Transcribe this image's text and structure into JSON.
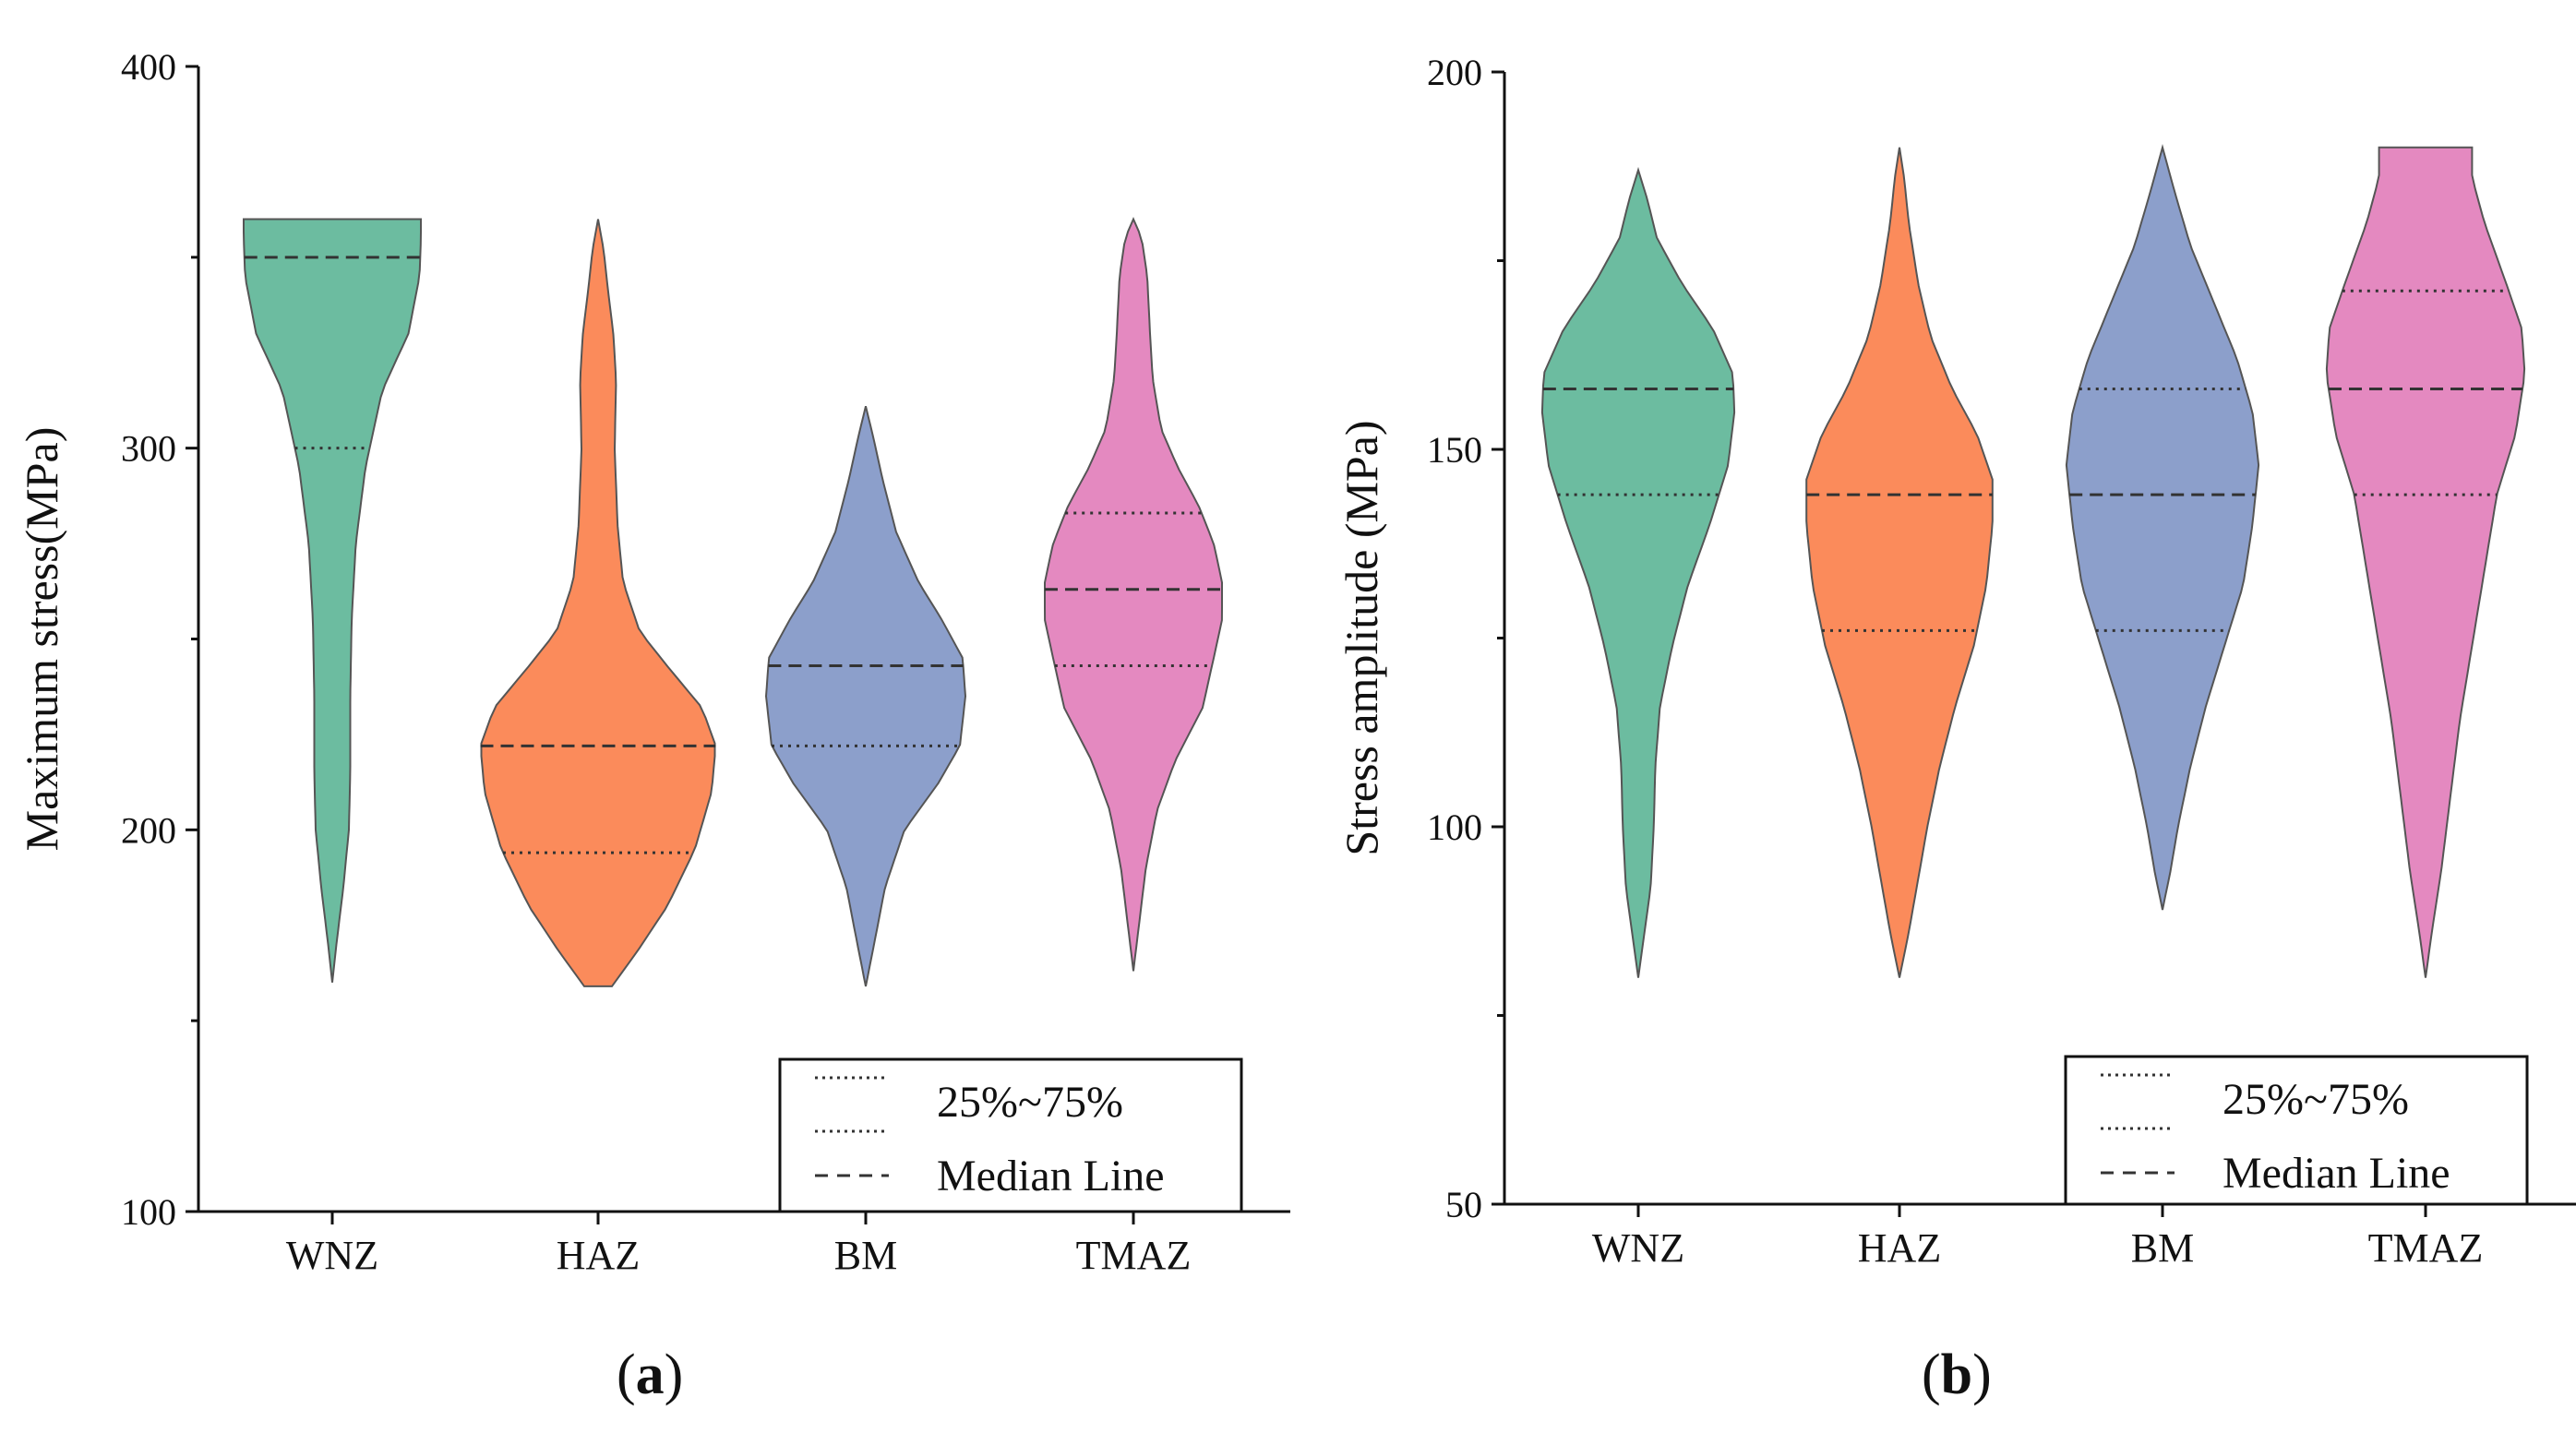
{
  "chart_data": [
    {
      "type": "violin",
      "panel_label": "a",
      "ylabel": "Maximum stress(MPa)",
      "ylim": [
        100,
        400
      ],
      "yticks": [
        100,
        200,
        300,
        400
      ],
      "categories": [
        "WNZ",
        "HAZ",
        "BM",
        "TMAZ"
      ],
      "colors": [
        "#6cbca0",
        "#fb8b5b",
        "#8c9fcb",
        "#e489c0"
      ],
      "series": [
        {
          "name": "WNZ",
          "min": 160,
          "max": 360,
          "q1": 300,
          "median": 350,
          "q3": 350,
          "density": [
            [
              160,
              0
            ],
            [
              170,
              3
            ],
            [
              185,
              8
            ],
            [
              200,
              12
            ],
            [
              215,
              13
            ],
            [
              235,
              13
            ],
            [
              255,
              14
            ],
            [
              275,
              17
            ],
            [
              295,
              24
            ],
            [
              315,
              36
            ],
            [
              330,
              55
            ],
            [
              345,
              63
            ],
            [
              355,
              64
            ],
            [
              360,
              64
            ]
          ]
        },
        {
          "name": "HAZ",
          "min": 159,
          "max": 360,
          "q1": 194,
          "median": 222,
          "q3": 222,
          "density": [
            [
              159,
              10
            ],
            [
              168,
              28
            ],
            [
              180,
              50
            ],
            [
              195,
              70
            ],
            [
              210,
              82
            ],
            [
              222,
              85
            ],
            [
              232,
              75
            ],
            [
              242,
              52
            ],
            [
              252,
              30
            ],
            [
              265,
              18
            ],
            [
              280,
              14
            ],
            [
              300,
              12
            ],
            [
              318,
              13
            ],
            [
              330,
              11
            ],
            [
              342,
              7
            ],
            [
              352,
              4
            ],
            [
              360,
              0
            ]
          ]
        },
        {
          "name": "BM",
          "min": 159,
          "max": 311,
          "q1": 222,
          "median": 243,
          "q3": 243,
          "density": [
            [
              159,
              0
            ],
            [
              170,
              6
            ],
            [
              185,
              14
            ],
            [
              200,
              28
            ],
            [
              212,
              52
            ],
            [
              222,
              68
            ],
            [
              235,
              72
            ],
            [
              245,
              70
            ],
            [
              255,
              55
            ],
            [
              265,
              38
            ],
            [
              278,
              22
            ],
            [
              292,
              12
            ],
            [
              302,
              6
            ],
            [
              311,
              0
            ]
          ]
        },
        {
          "name": "TMAZ",
          "min": 163,
          "max": 360,
          "q1": 243,
          "median": 263,
          "q3": 283,
          "density": [
            [
              163,
              0
            ],
            [
              175,
              4
            ],
            [
              190,
              9
            ],
            [
              205,
              17
            ],
            [
              218,
              30
            ],
            [
              232,
              50
            ],
            [
              245,
              58
            ],
            [
              255,
              64
            ],
            [
              265,
              64
            ],
            [
              275,
              58
            ],
            [
              285,
              47
            ],
            [
              295,
              32
            ],
            [
              305,
              20
            ],
            [
              318,
              14
            ],
            [
              330,
              12
            ],
            [
              345,
              10
            ],
            [
              355,
              6
            ],
            [
              360,
              0
            ]
          ]
        }
      ],
      "legend": [
        {
          "label": "25%~75%",
          "style": "dotted"
        },
        {
          "label": "Median Line",
          "style": "dashed"
        }
      ],
      "legend_position": "bottom-right"
    },
    {
      "type": "violin",
      "panel_label": "b",
      "ylabel": "Stress amplitude (MPa)",
      "ylim": [
        50,
        200
      ],
      "yticks": [
        50,
        100,
        150,
        200
      ],
      "categories": [
        "WNZ",
        "HAZ",
        "BM",
        "TMAZ"
      ],
      "colors": [
        "#6cbca0",
        "#fb8b5b",
        "#8c9fcb",
        "#e489c0"
      ],
      "series": [
        {
          "name": "WNZ",
          "min": 80,
          "max": 187,
          "q1": 144,
          "median": 158,
          "q3": 158,
          "density": [
            [
              80,
              0
            ],
            [
              86,
              4
            ],
            [
              92,
              8
            ],
            [
              100,
              10
            ],
            [
              108,
              11
            ],
            [
              116,
              14
            ],
            [
              124,
              22
            ],
            [
              132,
              32
            ],
            [
              140,
              46
            ],
            [
              148,
              58
            ],
            [
              155,
              62
            ],
            [
              160,
              61
            ],
            [
              166,
              48
            ],
            [
              172,
              28
            ],
            [
              178,
              12
            ],
            [
              183,
              6
            ],
            [
              187,
              0
            ]
          ]
        },
        {
          "name": "HAZ",
          "min": 80,
          "max": 190,
          "q1": 126,
          "median": 144,
          "q3": 144,
          "density": [
            [
              80,
              0
            ],
            [
              86,
              6
            ],
            [
              93,
              12
            ],
            [
              100,
              18
            ],
            [
              108,
              26
            ],
            [
              116,
              36
            ],
            [
              124,
              48
            ],
            [
              132,
              56
            ],
            [
              140,
              60
            ],
            [
              146,
              60
            ],
            [
              152,
              50
            ],
            [
              158,
              34
            ],
            [
              165,
              20
            ],
            [
              172,
              12
            ],
            [
              180,
              6
            ],
            [
              186,
              3
            ],
            [
              190,
              0
            ]
          ]
        },
        {
          "name": "BM",
          "min": 89,
          "max": 190,
          "q1": 126,
          "median": 144,
          "q3": 158,
          "density": [
            [
              89,
              0
            ],
            [
              94,
              5
            ],
            [
              100,
              10
            ],
            [
              108,
              18
            ],
            [
              116,
              28
            ],
            [
              124,
              40
            ],
            [
              132,
              52
            ],
            [
              140,
              58
            ],
            [
              148,
              62
            ],
            [
              155,
              58
            ],
            [
              162,
              48
            ],
            [
              170,
              32
            ],
            [
              177,
              18
            ],
            [
              184,
              8
            ],
            [
              190,
              0
            ]
          ]
        },
        {
          "name": "TMAZ",
          "min": 80,
          "max": 190,
          "q1": 144,
          "median": 158,
          "q3": 171,
          "density": [
            [
              80,
              0
            ],
            [
              86,
              4
            ],
            [
              94,
              10
            ],
            [
              104,
              16
            ],
            [
              114,
              22
            ],
            [
              124,
              30
            ],
            [
              134,
              38
            ],
            [
              144,
              46
            ],
            [
              152,
              58
            ],
            [
              160,
              64
            ],
            [
              166,
              62
            ],
            [
              172,
              52
            ],
            [
              180,
              38
            ],
            [
              186,
              30
            ],
            [
              190,
              30
            ]
          ]
        }
      ],
      "legend": [
        {
          "label": "25%~75%",
          "style": "dotted"
        },
        {
          "label": "Median Line",
          "style": "dashed"
        }
      ],
      "legend_position": "bottom-right"
    }
  ]
}
